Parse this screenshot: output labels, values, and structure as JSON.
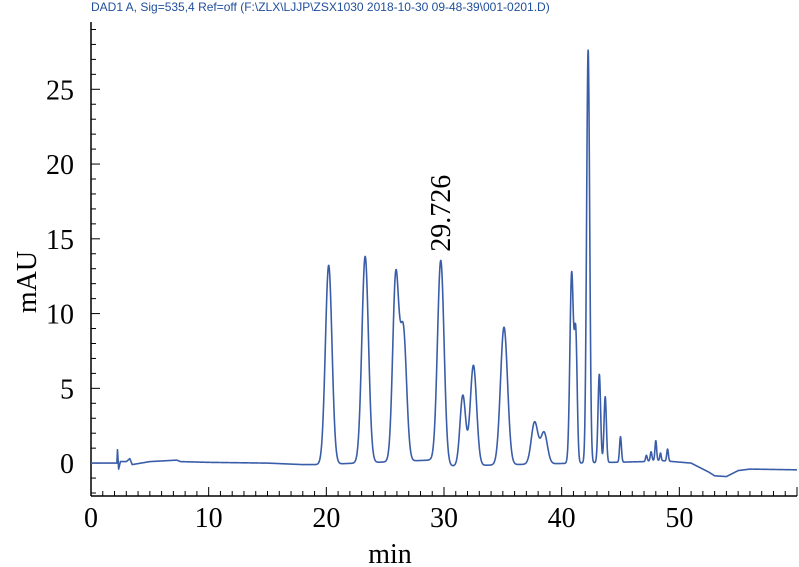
{
  "chart_data": {
    "type": "line",
    "title": "DAD1 A, Sig=535,4 Ref=off (F:\\ZLX\\LJJP\\ZSX1030 2018-10-30 09-48-39\\001-0201.D)",
    "xlabel": "min",
    "ylabel": "mAU",
    "xlim": [
      0,
      60
    ],
    "ylim": [
      -2.2,
      29.5
    ],
    "xticks": [
      0,
      10,
      20,
      30,
      40,
      50
    ],
    "yticks": [
      0,
      5,
      10,
      15,
      20,
      25
    ],
    "line_color": "#3a5da8",
    "baseline": [
      [
        0,
        0
      ],
      [
        2.2,
        0
      ],
      [
        2.25,
        0.9
      ],
      [
        2.35,
        -0.4
      ],
      [
        2.5,
        0.1
      ],
      [
        3.0,
        0.1
      ],
      [
        3.3,
        0.3
      ],
      [
        3.5,
        -0.1
      ],
      [
        5,
        0.1
      ],
      [
        7.3,
        0.2
      ],
      [
        7.6,
        0.1
      ],
      [
        10,
        0.05
      ],
      [
        15,
        0
      ],
      [
        18,
        -0.1
      ],
      [
        19.5,
        -0.1
      ],
      [
        28.8,
        0.2
      ],
      [
        30.3,
        -0.2
      ],
      [
        47,
        0.1
      ],
      [
        48,
        0.2
      ],
      [
        51,
        0
      ],
      [
        52.5,
        -0.6
      ],
      [
        53,
        -0.85
      ],
      [
        54,
        -0.9
      ],
      [
        55,
        -0.5
      ],
      [
        56,
        -0.4
      ],
      [
        60,
        -0.45
      ]
    ],
    "peaks": [
      {
        "rt": 20.2,
        "height": 13.3,
        "width": 0.28
      },
      {
        "rt": 23.3,
        "height": 13.8,
        "width": 0.28
      },
      {
        "rt": 25.9,
        "height": 12.3,
        "width": 0.26
      },
      {
        "rt": 26.55,
        "height": 8.6,
        "width": 0.27
      },
      {
        "rt": 29.726,
        "height": 13.6,
        "width": 0.28
      },
      {
        "rt": 31.6,
        "height": 4.7,
        "width": 0.24
      },
      {
        "rt": 32.5,
        "height": 6.7,
        "width": 0.27
      },
      {
        "rt": 35.1,
        "height": 9.2,
        "width": 0.3
      },
      {
        "rt": 37.7,
        "height": 2.8,
        "width": 0.28
      },
      {
        "rt": 38.5,
        "height": 2.1,
        "width": 0.28
      },
      {
        "rt": 40.85,
        "height": 12.7,
        "width": 0.15
      },
      {
        "rt": 41.2,
        "height": 8.3,
        "width": 0.12
      },
      {
        "rt": 42.25,
        "height": 27.6,
        "width": 0.13
      },
      {
        "rt": 43.2,
        "height": 5.9,
        "width": 0.11
      },
      {
        "rt": 43.7,
        "height": 4.4,
        "width": 0.1
      },
      {
        "rt": 45.0,
        "height": 1.7,
        "width": 0.08
      },
      {
        "rt": 47.2,
        "height": 0.4,
        "width": 0.07
      },
      {
        "rt": 47.6,
        "height": 0.6,
        "width": 0.07
      },
      {
        "rt": 48.0,
        "height": 1.3,
        "width": 0.07
      },
      {
        "rt": 48.4,
        "height": 0.5,
        "width": 0.06
      },
      {
        "rt": 49.0,
        "height": 0.8,
        "width": 0.07
      }
    ],
    "annotations": [
      {
        "text": "29.726",
        "x": 29.726,
        "y": 13.6
      }
    ],
    "grid": false,
    "legend": "none"
  }
}
